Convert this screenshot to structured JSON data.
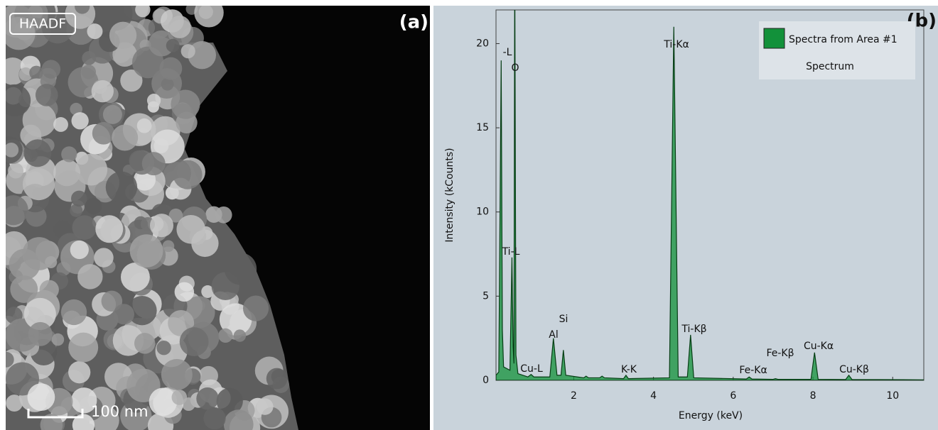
{
  "image_panel": {
    "label": "HAADF",
    "scale_bar": "100 nm",
    "panel": "(a)"
  },
  "chart_panel": "(b)",
  "chart_data": {
    "type": "area",
    "x_label": "Energy (keV)",
    "y_label": "Intensity (kCounts)",
    "x": [
      0.05,
      0.12,
      0.18,
      0.21,
      0.24,
      0.4,
      0.45,
      0.48,
      0.5,
      0.52,
      0.55,
      0.6,
      0.85,
      0.93,
      1.0,
      1.4,
      1.49,
      1.58,
      1.68,
      1.74,
      1.8,
      2.25,
      2.31,
      2.37,
      2.65,
      2.71,
      2.77,
      3.25,
      3.31,
      3.37,
      4.4,
      4.51,
      4.62,
      4.85,
      4.93,
      5.01,
      6.33,
      6.4,
      6.47,
      7.0,
      7.06,
      7.12,
      7.95,
      8.04,
      8.13,
      8.82,
      8.9,
      8.98,
      10.78
    ],
    "series": [
      {
        "name": "Spectra from Area #1",
        "color": "#12913a",
        "values": [
          0.3,
          0.5,
          19,
          3,
          0.8,
          0.6,
          7.3,
          2,
          1,
          25,
          1.5,
          0.4,
          0.2,
          0.35,
          0.2,
          0.2,
          2.5,
          0.3,
          0.3,
          1.8,
          0.3,
          0.15,
          0.25,
          0.15,
          0.15,
          0.25,
          0.15,
          0.1,
          0.3,
          0.1,
          0.15,
          21,
          0.2,
          0.2,
          2.7,
          0.15,
          0.08,
          0.2,
          0.08,
          0.06,
          0.1,
          0.06,
          0.06,
          1.65,
          0.06,
          0.05,
          0.3,
          0.05,
          0.03
        ]
      }
    ],
    "legend_subtitle": "Spectrum",
    "legend": "upper right",
    "peak_labels": [
      "-L",
      "O",
      "Ti-L",
      "Si",
      "Al",
      "Cu-L",
      "K-K",
      "Ti-Kα",
      "Ti-Kβ",
      "Fe-Kβ",
      "Fe-Kα",
      "Cu-Kα",
      "Cu-Kβ"
    ],
    "xlim": [
      0.05,
      10.78
    ],
    "ylim": [
      0,
      22
    ],
    "xticks": [
      2,
      4,
      6,
      8,
      10
    ],
    "yticks": [
      0,
      5,
      10,
      15,
      20
    ]
  }
}
